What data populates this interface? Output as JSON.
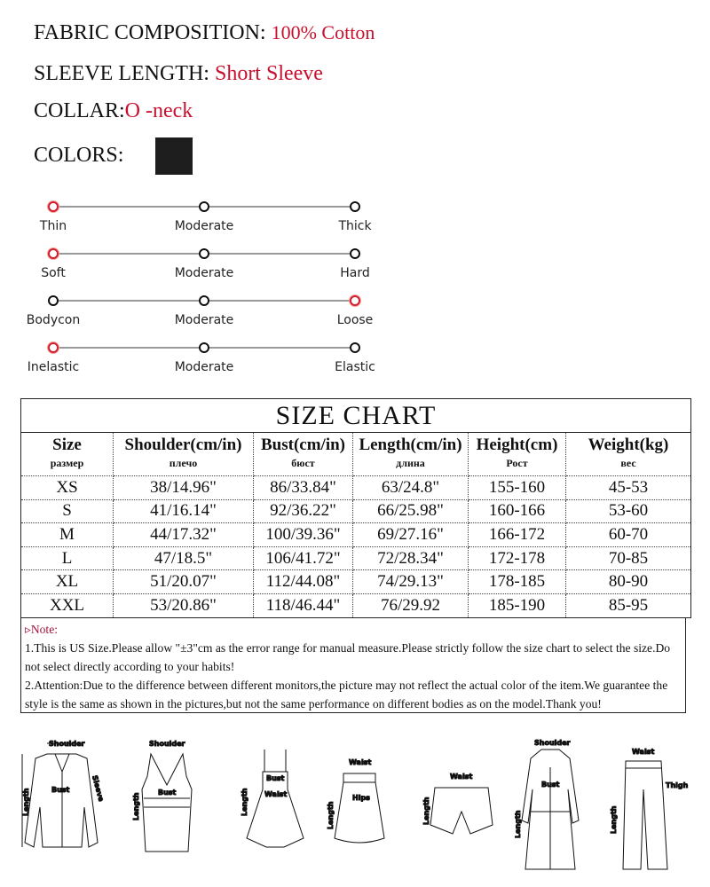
{
  "attributes": [
    {
      "label": "FABRIC COMPOSITION:",
      "value": "100% Cotton"
    },
    {
      "label": "SLEEVE LENGTH:",
      "value": "Short Sleeve"
    },
    {
      "label": "COLLAR:",
      "value": "O -neck"
    },
    {
      "label": "COLORS:",
      "value": ""
    }
  ],
  "colors": {
    "swatch": "#1e1e1e",
    "accent": "#c8102e"
  },
  "sliders": [
    {
      "labels": [
        "Thin",
        "Moderate",
        "Thick"
      ],
      "selected": 0
    },
    {
      "labels": [
        "Soft",
        "Moderate",
        "Hard"
      ],
      "selected": 0
    },
    {
      "labels": [
        "Bodycon",
        "Moderate",
        "Loose"
      ],
      "selected": 2
    },
    {
      "labels": [
        "Inelastic",
        "Moderate",
        "Elastic"
      ],
      "selected": 0
    }
  ],
  "size_chart": {
    "title": "SIZE  CHART",
    "headers": [
      {
        "en": "Size",
        "ru": "размер"
      },
      {
        "en": "Shoulder(cm/in)",
        "ru": "плечо"
      },
      {
        "en": "Bust(cm/in)",
        "ru": "бюст"
      },
      {
        "en": "Length(cm/in)",
        "ru": "длина"
      },
      {
        "en": "Height(cm)",
        "ru": "Рост"
      },
      {
        "en": "Weight(kg)",
        "ru": "вес"
      }
    ],
    "rows": [
      [
        "XS",
        "38/14.96\"",
        "86/33.84\"",
        "63/24.8\"",
        "155-160",
        "45-53"
      ],
      [
        "S",
        "41/16.14\"",
        "92/36.22\"",
        "66/25.98\"",
        "160-166",
        "53-60"
      ],
      [
        "M",
        "44/17.32\"",
        "100/39.36\"",
        "69/27.16\"",
        "166-172",
        "60-70"
      ],
      [
        "L",
        "47/18.5\"",
        "106/41.72\"",
        "72/28.34\"",
        "172-178",
        "70-85"
      ],
      [
        "XL",
        "51/20.07\"",
        "112/44.08\"",
        "74/29.13\"",
        "178-185",
        "80-90"
      ],
      [
        "XXL",
        "53/20.86\"",
        "118/46.44\"",
        "76/29.92",
        "185-190",
        "85-95"
      ]
    ]
  },
  "note": {
    "heading": "▹Note:",
    "line1": "1.This is US Size.Please allow \"±3\"cm as the error range for manual measure.Please strictly follow the size chart to select the size.Do not select directly according to your habits!",
    "line2": "2.Attention:Due to the difference between different monitors,the picture may not reflect the actual color of the item.We guarantee the style is the same as shown in the pictures,but not the same performance on different bodies as on the model.Thank you!"
  },
  "diagrams": [
    {
      "name": "blouse",
      "labels": [
        "Shoulder",
        "Bust",
        "Length",
        "Sleeve"
      ]
    },
    {
      "name": "tank-top",
      "labels": [
        "Shoulder",
        "Bust",
        "Length"
      ]
    },
    {
      "name": "dress",
      "labels": [
        "Bust",
        "Waist",
        "Length"
      ]
    },
    {
      "name": "skirt",
      "labels": [
        "Waist",
        "Hips",
        "Length"
      ]
    },
    {
      "name": "shorts",
      "labels": [
        "Waist",
        "Length"
      ]
    },
    {
      "name": "coat",
      "labels": [
        "Shoulder",
        "Bust",
        "Length"
      ]
    },
    {
      "name": "pants",
      "labels": [
        "Waist",
        "Thigh",
        "Length"
      ]
    }
  ]
}
